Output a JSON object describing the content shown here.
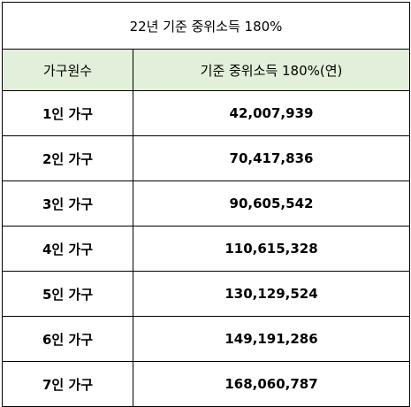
{
  "table": {
    "title": "22년 기준 중위소득 180%",
    "header_bg": "#e2efda",
    "columns": [
      "가구원수",
      "기준 중위소득 180%(연)"
    ],
    "rows": [
      {
        "household": "1인 가구",
        "amount": "42,007,939"
      },
      {
        "household": "2인 가구",
        "amount": "70,417,836"
      },
      {
        "household": "3인 가구",
        "amount": "90,605,542"
      },
      {
        "household": "4인 가구",
        "amount": "110,615,328"
      },
      {
        "household": "5인 가구",
        "amount": "130,129,524"
      },
      {
        "household": "6인 가구",
        "amount": "149,191,286"
      },
      {
        "household": "7인 가구",
        "amount": "168,060,787"
      }
    ]
  }
}
